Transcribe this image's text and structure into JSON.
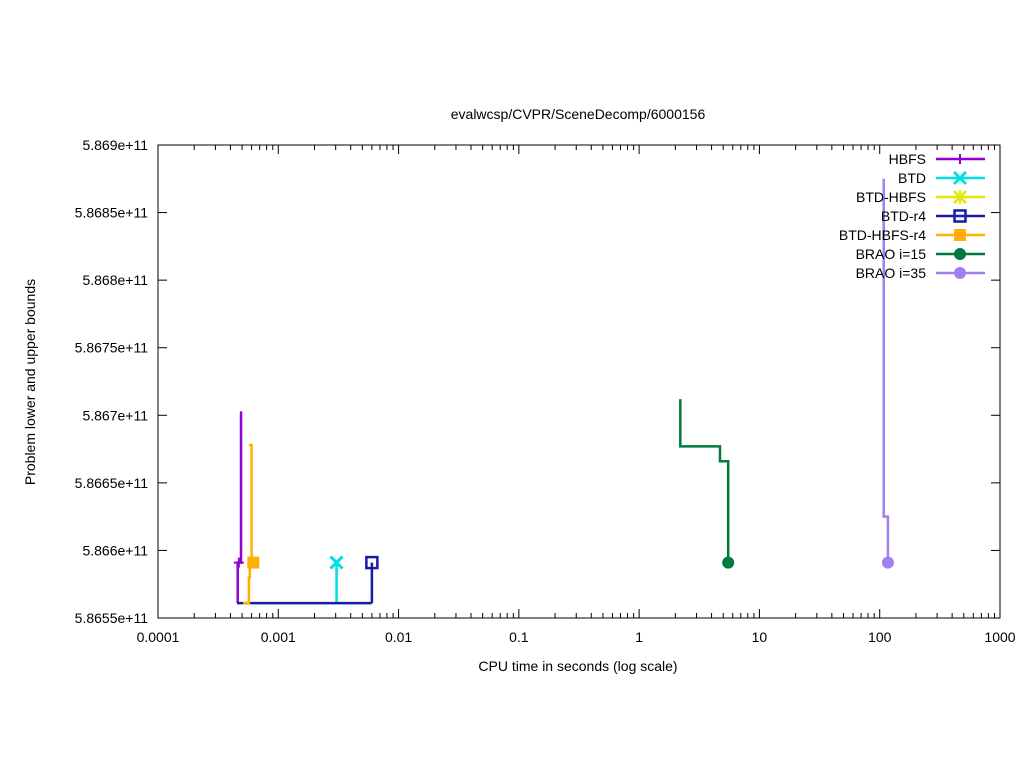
{
  "chart_data": {
    "type": "line",
    "title": "evalwcsp/CVPR/SceneDecomp/6000156",
    "xlabel": "CPU time in seconds (log scale)",
    "ylabel": "Problem lower and upper bounds",
    "xscale": "log",
    "xlim": [
      0.0001,
      1000
    ],
    "ylim": [
      586550000000,
      586900000000
    ],
    "x_ticks": [
      0.0001,
      0.001,
      0.01,
      0.1,
      1,
      10,
      100,
      1000
    ],
    "x_tick_labels": [
      "0.0001",
      "0.001",
      "0.01",
      "0.1",
      "1",
      "10",
      "100",
      "1000"
    ],
    "y_ticks": [
      586550000000,
      586600000000,
      586650000000,
      586700000000,
      586750000000,
      586800000000,
      586850000000,
      586900000000
    ],
    "y_tick_labels": [
      "5.8655e+11",
      "5.866e+11",
      "5.8665e+11",
      "5.867e+11",
      "5.8675e+11",
      "5.868e+11",
      "5.8685e+11",
      "5.869e+11"
    ],
    "grid": false,
    "legend_position": "top-right",
    "series": [
      {
        "name": "HBFS",
        "color": "#9400d3",
        "marker": "plus",
        "upper": [
          [
            0.00048,
            586702000000
          ],
          [
            0.00049,
            586702000000
          ],
          [
            0.00049,
            586591000000
          ],
          [
            0.00046,
            586591000000
          ],
          [
            0.00046,
            586561000000
          ]
        ],
        "markers": [
          [
            0.00047,
            586591000000
          ]
        ]
      },
      {
        "name": "BTD",
        "color": "#00e0e0",
        "marker": "x",
        "upper": [
          [
            0.00305,
            586591000000
          ],
          [
            0.00305,
            586561000000
          ]
        ],
        "markers": [
          [
            0.00305,
            586591000000
          ]
        ]
      },
      {
        "name": "BTD-HBFS",
        "color": "#e6e600",
        "marker": "star",
        "upper": [],
        "markers": []
      },
      {
        "name": "BTD-r4",
        "color": "#1a1aa8",
        "marker": "open-square",
        "upper": [
          [
            0.006,
            586591000000
          ],
          [
            0.006,
            586561000000
          ]
        ],
        "lower": [
          [
            0.000455,
            586561000000
          ],
          [
            0.006,
            586561000000
          ]
        ],
        "markers": [
          [
            0.006,
            586591000000
          ]
        ]
      },
      {
        "name": "BTD-HBFS-r4",
        "color": "#ffb000",
        "marker": "filled-square",
        "upper": [
          [
            0.00057,
            586678000000
          ],
          [
            0.0006,
            586678000000
          ],
          [
            0.0006,
            586591000000
          ],
          [
            0.00058,
            586591000000
          ],
          [
            0.00058,
            586580000000
          ],
          [
            0.00057,
            586580000000
          ],
          [
            0.00057,
            586561000000
          ],
          [
            0.00051,
            586561000000
          ]
        ],
        "markers": [
          [
            0.00062,
            586591000000
          ]
        ]
      },
      {
        "name": "BRAO i=15",
        "color": "#007a3d",
        "marker": "filled-circle",
        "upper": [
          [
            2.2,
            586712000000
          ],
          [
            2.2,
            586677000000
          ],
          [
            4.7,
            586677000000
          ],
          [
            4.7,
            586666000000
          ],
          [
            5.5,
            586666000000
          ],
          [
            5.5,
            586591000000
          ]
        ],
        "markers": [
          [
            5.5,
            586591000000
          ]
        ]
      },
      {
        "name": "BRAO i=35",
        "color": "#a080f0",
        "marker": "filled-circle",
        "upper": [
          [
            108,
            586875000000
          ],
          [
            108,
            586625000000
          ],
          [
            117,
            586625000000
          ],
          [
            117,
            586591000000
          ]
        ],
        "markers": [
          [
            117,
            586591000000
          ]
        ]
      }
    ]
  }
}
